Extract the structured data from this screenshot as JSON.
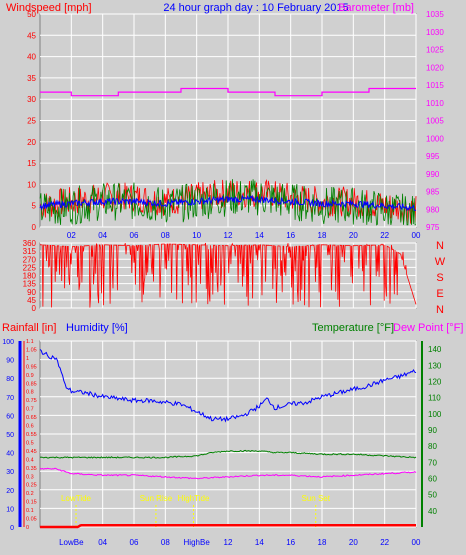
{
  "header": {
    "left_title": "Windspeed [mph]",
    "center_title": "24 hour graph day : 10 February 2015",
    "right_title": "Barometer [mb]"
  },
  "colors": {
    "red": "#ff0000",
    "blue": "#0000ff",
    "magenta": "#ff00ff",
    "green": "#008000",
    "yellow": "#ffff00",
    "panel_bg": "#d0d0d0",
    "grid": "#ffffff"
  },
  "hour_ticks": [
    "02",
    "04",
    "06",
    "08",
    "10",
    "12",
    "14",
    "16",
    "18",
    "20",
    "22",
    "00"
  ],
  "bottom_hour_ticks": [
    "LowBe",
    "04",
    "06",
    "08",
    "HighBe",
    "12",
    "14",
    "16",
    "18",
    "20",
    "22",
    "00"
  ],
  "chart_data": [
    {
      "type": "line",
      "title": "Windspeed [mph]",
      "x_ticks": [
        "02",
        "04",
        "06",
        "08",
        "10",
        "12",
        "14",
        "16",
        "18",
        "20",
        "22",
        "00"
      ],
      "ylabel": "Windspeed [mph]",
      "ylim": [
        0,
        50
      ],
      "y_ticks": [
        "0",
        "5",
        "10",
        "15",
        "20",
        "25",
        "30",
        "35",
        "40",
        "45",
        "50"
      ],
      "y2label": "Barometer [mb]",
      "y2lim": [
        975,
        1035
      ],
      "y2_ticks": [
        "975",
        "980",
        "985",
        "990",
        "995",
        "1000",
        "1005",
        "1010",
        "1015",
        "1020",
        "1025",
        "1030",
        "1035"
      ],
      "grid": true,
      "series": [
        {
          "name": "Windspeed [mph]",
          "color": "#ff0000",
          "axis": "left",
          "x": [
            0,
            2,
            4,
            6,
            8,
            10,
            12,
            14,
            16,
            18,
            20,
            22,
            24
          ],
          "values": [
            5,
            6,
            7,
            7,
            6,
            7,
            8,
            8,
            7,
            6,
            6,
            5,
            4
          ]
        },
        {
          "name": "",
          "color": "#008000",
          "axis": "left",
          "x": [
            0,
            2,
            4,
            6,
            8,
            10,
            12,
            14,
            16,
            18,
            20,
            22,
            24
          ],
          "values": [
            4,
            5,
            6,
            6,
            5,
            6,
            7,
            7,
            6,
            5,
            5,
            4,
            3
          ]
        },
        {
          "name": "",
          "color": "#0000ff",
          "axis": "left",
          "x": [
            0,
            2,
            4,
            6,
            8,
            10,
            12,
            14,
            16,
            18,
            20,
            22,
            24
          ],
          "values": [
            5,
            5.5,
            6,
            6,
            5.5,
            6,
            6.5,
            6.5,
            6,
            5.5,
            5.5,
            5,
            4.5
          ]
        },
        {
          "name": "Barometer [mb]",
          "color": "#ff00ff",
          "axis": "right",
          "x": [
            0,
            1.5,
            2,
            3,
            4,
            5,
            6,
            8,
            9,
            10,
            11,
            12,
            13,
            14,
            15,
            16,
            17,
            18,
            19,
            20,
            21,
            22,
            24
          ],
          "values": [
            1013,
            1013,
            1012,
            1012,
            1012,
            1013,
            1013,
            1013,
            1014,
            1014,
            1014,
            1013,
            1013,
            1013,
            1012,
            1012,
            1012,
            1013,
            1013,
            1013,
            1014,
            1014,
            1014
          ]
        }
      ]
    },
    {
      "type": "line",
      "title": "",
      "ylim": [
        0,
        360
      ],
      "y_ticks": [
        "0",
        "45",
        "90",
        "135",
        "180",
        "225",
        "270",
        "315",
        "360"
      ],
      "direction_labels": [
        "N",
        "W",
        "S",
        "E",
        "N"
      ],
      "grid": true,
      "series": [
        {
          "name": "",
          "color": "#ff0000",
          "x": [
            0,
            2,
            4,
            6,
            8,
            10,
            12,
            14,
            16,
            18,
            20,
            22,
            23,
            24
          ],
          "values": [
            350,
            340,
            350,
            345,
            355,
            350,
            345,
            350,
            340,
            350,
            345,
            350,
            300,
            20
          ]
        }
      ]
    },
    {
      "type": "line",
      "title": "",
      "y1label": "Rainfall [in]",
      "y1lim": [
        0,
        1.1
      ],
      "y1_ticks": [
        "0",
        "0.05",
        "0.1",
        "0.15",
        "0.2",
        "0.25",
        "0.3",
        "0.35",
        "0.4",
        "0.45",
        "0.5",
        "0.55",
        "0.6",
        "0.65",
        "0.7",
        "0.75",
        "0.8",
        "0.85",
        "0.9",
        "0.95",
        "1",
        "1.05",
        "1.1"
      ],
      "y2label": "Humidity [%]",
      "y2lim": [
        0,
        100
      ],
      "y2_ticks": [
        "0",
        "10",
        "20",
        "30",
        "40",
        "50",
        "60",
        "70",
        "80",
        "90",
        "100"
      ],
      "y3label": "Temperature [°F]",
      "y3label_b": "Dew Point [°F]",
      "y3lim": [
        30,
        145
      ],
      "y3_ticks": [
        "40",
        "50",
        "60",
        "70",
        "80",
        "90",
        "100",
        "110",
        "120",
        "130",
        "140"
      ],
      "grid": true,
      "annotations": [
        {
          "text": "LowTide",
          "x": 2.3
        },
        {
          "text": "Sun Rise",
          "x": 7.4
        },
        {
          "text": "HighTide",
          "x": 9.8
        },
        {
          "text": "Sun Set",
          "x": 17.6
        }
      ],
      "series": [
        {
          "name": "Humidity [%]",
          "color": "#0000ff",
          "axis": "humidity",
          "x": [
            0,
            0.5,
            1,
            1.3,
            1.6,
            2,
            3,
            4,
            5,
            6,
            7,
            8,
            9,
            10,
            11,
            12,
            13,
            14,
            14.5,
            15,
            16,
            17,
            18,
            19,
            20,
            21,
            22,
            23,
            24
          ],
          "values": [
            95,
            92,
            91,
            85,
            76,
            73,
            72,
            70,
            69,
            68,
            68,
            67,
            66,
            62,
            58,
            58,
            60,
            65,
            69,
            64,
            66,
            67,
            70,
            72,
            74,
            76,
            79,
            81,
            84
          ]
        },
        {
          "name": "Temperature [°F]",
          "color": "#008000",
          "axis": "temp",
          "x": [
            0,
            2,
            4,
            6,
            8,
            10,
            11,
            12,
            13,
            14,
            15,
            16,
            18,
            20,
            22,
            24
          ],
          "values": [
            73,
            73,
            73,
            73,
            73,
            74,
            76,
            77,
            77,
            77,
            76,
            76,
            75,
            75,
            74,
            73
          ]
        },
        {
          "name": "Dew Point [°F]",
          "color": "#ff00ff",
          "axis": "temp",
          "x": [
            0,
            1,
            2,
            4,
            6,
            8,
            10,
            12,
            14,
            16,
            18,
            20,
            22,
            24
          ],
          "values": [
            66,
            66,
            63,
            62,
            62,
            61,
            60,
            61,
            62,
            62,
            61,
            62,
            63,
            64
          ]
        },
        {
          "name": "Rainfall [in]",
          "color": "#ff0000",
          "axis": "rain",
          "x": [
            0,
            2.4,
            2.6,
            24
          ],
          "values": [
            0,
            0,
            0.01,
            0.01
          ]
        }
      ]
    }
  ]
}
